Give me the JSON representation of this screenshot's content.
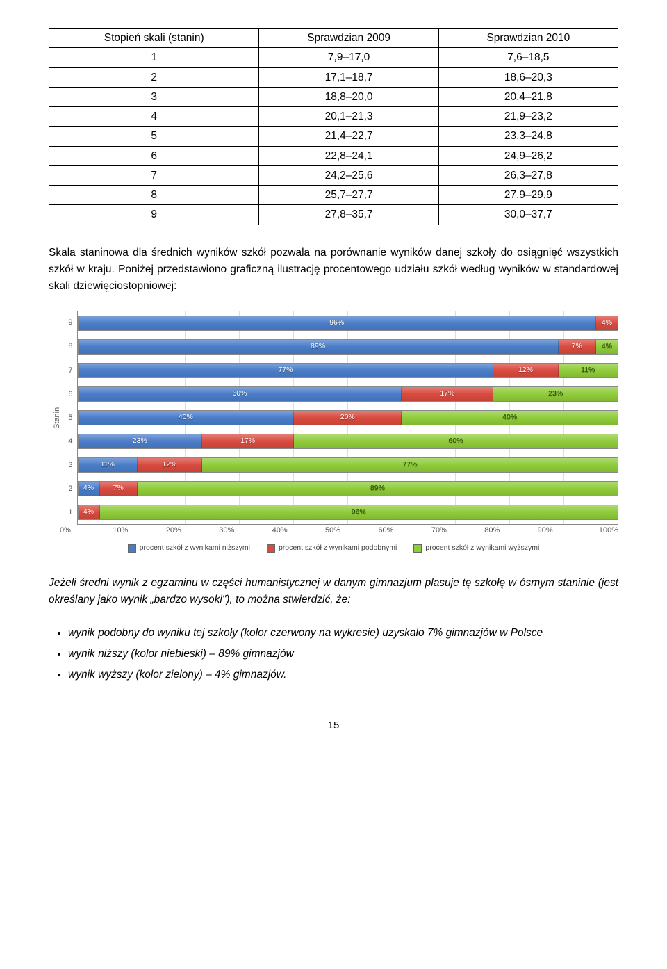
{
  "table": {
    "columns": [
      "Stopień skali (stanin)",
      "Sprawdzian 2009",
      "Sprawdzian 2010"
    ],
    "rows": [
      [
        "1",
        "7,9–17,0",
        "7,6–18,5"
      ],
      [
        "2",
        "17,1–18,7",
        "18,6–20,3"
      ],
      [
        "3",
        "18,8–20,0",
        "20,4–21,8"
      ],
      [
        "4",
        "20,1–21,3",
        "21,9–23,2"
      ],
      [
        "5",
        "21,4–22,7",
        "23,3–24,8"
      ],
      [
        "6",
        "22,8–24,1",
        "24,9–26,2"
      ],
      [
        "7",
        "24,2–25,6",
        "26,3–27,8"
      ],
      [
        "8",
        "25,7–27,7",
        "27,9–29,9"
      ],
      [
        "9",
        "27,8–35,7",
        "30,0–37,7"
      ]
    ]
  },
  "para1": "Skala staninowa dla średnich wyników szkół pozwala na porównanie wyników danej szkoły do osiągnięć wszystkich szkół w kraju. Poniżej przedstawiono graficzną ilustrację procentowego udziału szkół według wyników w standardowej skali dziewięciostopniowej:",
  "chart": {
    "ylabel": "Stanin",
    "ylabels": [
      "9",
      "8",
      "7",
      "6",
      "5",
      "4",
      "3",
      "2",
      "1"
    ],
    "xlabels": [
      "0%",
      "10%",
      "20%",
      "30%",
      "40%",
      "50%",
      "60%",
      "70%",
      "80%",
      "90%",
      "100%"
    ],
    "colors": {
      "blue": "#4a7dc9",
      "red": "#d94a3f",
      "green": "#8fcc3a"
    },
    "series": [
      {
        "y": "9",
        "segs": [
          {
            "c": "blue",
            "v": 96,
            "t": "96%"
          },
          {
            "c": "red",
            "v": 4,
            "t": "4%"
          }
        ]
      },
      {
        "y": "8",
        "segs": [
          {
            "c": "blue",
            "v": 89,
            "t": "89%"
          },
          {
            "c": "red",
            "v": 7,
            "t": "7%"
          },
          {
            "c": "green",
            "v": 4,
            "t": "4%"
          }
        ]
      },
      {
        "y": "7",
        "segs": [
          {
            "c": "blue",
            "v": 77,
            "t": "77%"
          },
          {
            "c": "red",
            "v": 12,
            "t": "12%"
          },
          {
            "c": "green",
            "v": 11,
            "t": "11%"
          }
        ]
      },
      {
        "y": "6",
        "segs": [
          {
            "c": "blue",
            "v": 60,
            "t": "60%"
          },
          {
            "c": "red",
            "v": 17,
            "t": "17%"
          },
          {
            "c": "green",
            "v": 23,
            "t": "23%"
          }
        ]
      },
      {
        "y": "5",
        "segs": [
          {
            "c": "blue",
            "v": 40,
            "t": "40%"
          },
          {
            "c": "red",
            "v": 20,
            "t": "20%"
          },
          {
            "c": "green",
            "v": 40,
            "t": "40%"
          }
        ]
      },
      {
        "y": "4",
        "segs": [
          {
            "c": "blue",
            "v": 23,
            "t": "23%"
          },
          {
            "c": "red",
            "v": 17,
            "t": "17%"
          },
          {
            "c": "green",
            "v": 60,
            "t": "60%"
          }
        ]
      },
      {
        "y": "3",
        "segs": [
          {
            "c": "blue",
            "v": 11,
            "t": "11%"
          },
          {
            "c": "red",
            "v": 12,
            "t": "12%"
          },
          {
            "c": "green",
            "v": 77,
            "t": "77%"
          }
        ]
      },
      {
        "y": "2",
        "segs": [
          {
            "c": "blue",
            "v": 4,
            "t": "4%"
          },
          {
            "c": "red",
            "v": 7,
            "t": "7%"
          },
          {
            "c": "green",
            "v": 89,
            "t": "89%"
          }
        ]
      },
      {
        "y": "1",
        "segs": [
          {
            "c": "red",
            "v": 4,
            "t": "4%"
          },
          {
            "c": "green",
            "v": 96,
            "t": "96%"
          }
        ]
      }
    ],
    "legend": [
      {
        "c": "blue",
        "t": "procent szkół z wynikami niższymi"
      },
      {
        "c": "red",
        "t": "procent szkół z wynikami podobnymi"
      },
      {
        "c": "green",
        "t": "procent szkół z wynikami wyższymi"
      }
    ]
  },
  "para2": "Jeżeli średni wynik z egzaminu w części humanistycznej w danym gimnazjum plasuje tę szkołę w ósmym staninie (jest określany jako wynik „bardzo wysoki\"), to można stwierdzić, że:",
  "bullets": [
    "wynik podobny do wyniku tej szkoły (kolor czerwony na wykresie) uzyskało 7% gimnazjów w Polsce",
    "wynik niższy (kolor niebieski) – 89% gimnazjów",
    "wynik wyższy (kolor zielony) – 4% gimnazjów."
  ],
  "pagenum": "15"
}
